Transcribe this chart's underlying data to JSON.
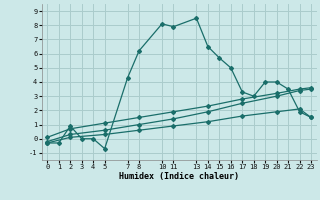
{
  "xlabel": "Humidex (Indice chaleur)",
  "background_color": "#cce8e8",
  "grid_color": "#aacccc",
  "line_color": "#1a6e6a",
  "ylim": [
    -1.5,
    9.5
  ],
  "xlim": [
    -0.5,
    23.5
  ],
  "yticks": [
    -1,
    0,
    1,
    2,
    3,
    4,
    5,
    6,
    7,
    8,
    9
  ],
  "xticks": [
    0,
    1,
    2,
    3,
    4,
    5,
    7,
    8,
    10,
    11,
    13,
    14,
    15,
    16,
    17,
    18,
    19,
    20,
    21,
    22,
    23
  ],
  "series1_x": [
    0,
    1,
    2,
    3,
    4,
    5,
    7,
    8,
    10,
    11,
    13,
    14,
    15,
    16,
    17,
    18,
    19,
    20,
    21,
    22,
    23
  ],
  "series1_y": [
    -0.3,
    -0.3,
    0.9,
    0.0,
    0.0,
    -0.7,
    4.3,
    6.2,
    8.1,
    7.9,
    8.5,
    6.5,
    5.7,
    5.0,
    3.3,
    3.0,
    4.0,
    4.0,
    3.5,
    1.9,
    1.5
  ],
  "series2_x": [
    0,
    2,
    5,
    8,
    11,
    14,
    17,
    20,
    22,
    23
  ],
  "series2_y": [
    0.1,
    0.7,
    1.1,
    1.5,
    1.9,
    2.3,
    2.8,
    3.2,
    3.5,
    3.6
  ],
  "series3_x": [
    0,
    2,
    5,
    8,
    11,
    14,
    17,
    20,
    22,
    23
  ],
  "series3_y": [
    -0.2,
    0.3,
    0.6,
    1.0,
    1.4,
    1.9,
    2.5,
    3.0,
    3.4,
    3.5
  ],
  "series4_x": [
    0,
    2,
    5,
    8,
    11,
    14,
    17,
    20,
    22,
    23
  ],
  "series4_y": [
    -0.3,
    0.1,
    0.3,
    0.6,
    0.9,
    1.2,
    1.6,
    1.9,
    2.1,
    1.5
  ]
}
